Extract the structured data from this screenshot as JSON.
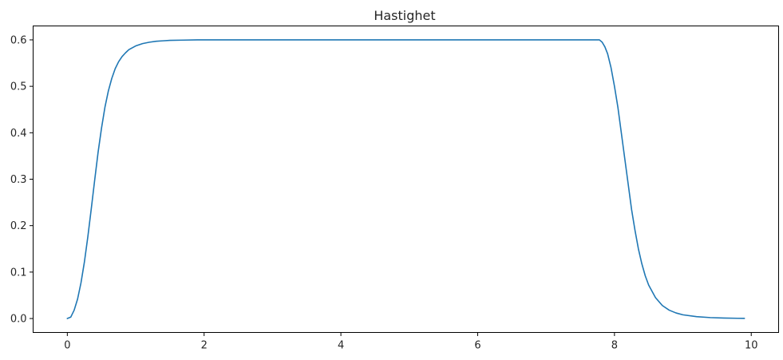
{
  "chart_data": {
    "type": "line",
    "title": "Hastighet",
    "xlabel": "",
    "ylabel": "",
    "xlim": [
      -0.5,
      10.4
    ],
    "ylim": [
      -0.03,
      0.63
    ],
    "grid": false,
    "xticks": [
      0,
      2,
      4,
      6,
      8,
      10
    ],
    "xtick_labels": [
      "0",
      "2",
      "4",
      "6",
      "8",
      "10"
    ],
    "yticks": [
      0.0,
      0.1,
      0.2,
      0.3,
      0.4,
      0.5,
      0.6
    ],
    "ytick_labels": [
      "0.0",
      "0.1",
      "0.2",
      "0.3",
      "0.4",
      "0.5",
      "0.6"
    ],
    "series": [
      {
        "color": "#1f77b4",
        "x": [
          0.0,
          0.05,
          0.1,
          0.15,
          0.2,
          0.25,
          0.3,
          0.35,
          0.4,
          0.45,
          0.5,
          0.55,
          0.6,
          0.65,
          0.7,
          0.75,
          0.8,
          0.85,
          0.9,
          1.0,
          1.1,
          1.2,
          1.3,
          1.4,
          1.5,
          1.7,
          1.9,
          2.2,
          2.6,
          3.0,
          4.0,
          5.0,
          6.0,
          7.0,
          7.5,
          7.7,
          7.78,
          7.82,
          7.86,
          7.9,
          7.95,
          8.0,
          8.05,
          8.1,
          8.15,
          8.2,
          8.25,
          8.3,
          8.35,
          8.4,
          8.45,
          8.5,
          8.6,
          8.7,
          8.8,
          8.9,
          9.0,
          9.2,
          9.4,
          9.6,
          9.8,
          9.9
        ],
        "y": [
          0.0,
          0.003,
          0.018,
          0.042,
          0.077,
          0.122,
          0.176,
          0.236,
          0.298,
          0.358,
          0.41,
          0.455,
          0.49,
          0.517,
          0.538,
          0.553,
          0.564,
          0.572,
          0.579,
          0.587,
          0.592,
          0.595,
          0.597,
          0.598,
          0.599,
          0.5995,
          0.6,
          0.6,
          0.6,
          0.6,
          0.6,
          0.6,
          0.6,
          0.6,
          0.6,
          0.6,
          0.6,
          0.595,
          0.585,
          0.57,
          0.54,
          0.5,
          0.455,
          0.4,
          0.345,
          0.29,
          0.235,
          0.19,
          0.15,
          0.118,
          0.092,
          0.072,
          0.045,
          0.028,
          0.018,
          0.012,
          0.008,
          0.004,
          0.002,
          0.001,
          0.0005,
          0.0004
        ]
      }
    ]
  }
}
